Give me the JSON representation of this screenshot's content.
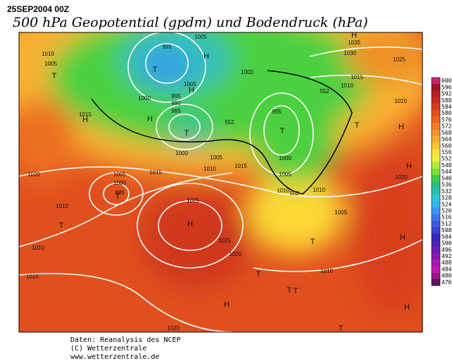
{
  "header": {
    "date": "25SEP2004 00Z",
    "title": "500 hPa Geopotential (gpdm) und Bodendruck (hPa)"
  },
  "footer": [
    "Daten: Reanalysis des NCEP",
    "(C) Wetterzentrale",
    "www.wetterzentrale.de"
  ],
  "colorbar": {
    "levels": [
      600,
      596,
      592,
      588,
      584,
      580,
      576,
      572,
      568,
      564,
      560,
      556,
      552,
      548,
      544,
      540,
      536,
      532,
      528,
      524,
      520,
      516,
      512,
      508,
      504,
      500,
      496,
      492,
      488,
      484,
      480,
      476
    ],
    "colors": [
      "#d0207a",
      "#a0141e",
      "#b41e1e",
      "#c82a1e",
      "#d83a1c",
      "#e44e1c",
      "#ec6620",
      "#f07c24",
      "#f4942a",
      "#f8ac2e",
      "#fcc432",
      "#fce036",
      "#e8f03a",
      "#b4e83a",
      "#7cdc3c",
      "#40cc44",
      "#2cc07c",
      "#28c0b0",
      "#28c8d8",
      "#30b4ec",
      "#3896f0",
      "#3c78ec",
      "#3c5ae4",
      "#3c40d4",
      "#3428b8",
      "#4a20b0",
      "#6a1cb0",
      "#8a18b0",
      "#a818b4",
      "#c018b0",
      "#9a1690",
      "#601060"
    ]
  },
  "map": {
    "labels": [
      "1005",
      "995",
      "H",
      "1010",
      "1005",
      "T",
      "H",
      "1035",
      "1030",
      "1025",
      "1000",
      "T",
      "1005",
      "H",
      "1015",
      "1010",
      "552",
      "1000",
      "995",
      "990",
      "985",
      "1020",
      "1015",
      "H",
      "H",
      "T",
      "552",
      "995",
      "T",
      "T",
      "H",
      "1000",
      "1005",
      "1010",
      "1015",
      "1000",
      "1005",
      "1020",
      "1005",
      "1000",
      "985",
      "T",
      "1015",
      "H",
      "1020",
      "1010",
      "552",
      "1010",
      "1025",
      "1010",
      "T",
      "H",
      "1005",
      "T",
      "1010",
      "1025",
      "1020",
      "H",
      "1015",
      "T",
      "1010",
      "T",
      "T",
      "H",
      "H",
      "T",
      "1020"
    ]
  }
}
